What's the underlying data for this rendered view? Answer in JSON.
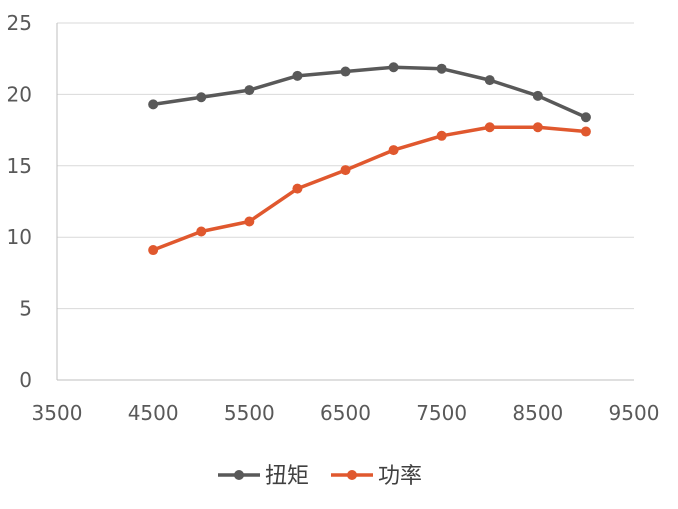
{
  "chart_data": {
    "type": "line",
    "x": [
      4500,
      5000,
      5500,
      6000,
      6500,
      7000,
      7500,
      8000,
      8500,
      9000
    ],
    "series": [
      {
        "name": "扭矩",
        "color": "#595959",
        "values": [
          19.3,
          19.8,
          20.3,
          21.3,
          21.6,
          21.9,
          21.8,
          21.0,
          19.9,
          18.4
        ]
      },
      {
        "name": "功率",
        "color": "#e0582e",
        "values": [
          9.1,
          10.4,
          11.1,
          13.4,
          14.7,
          16.1,
          17.1,
          17.7,
          17.7,
          17.4
        ]
      }
    ],
    "xlim": [
      3500,
      9500
    ],
    "ylim": [
      0,
      25
    ],
    "x_ticks": [
      3500,
      4500,
      5500,
      6500,
      7500,
      8500,
      9500
    ],
    "y_ticks": [
      0,
      5,
      10,
      15,
      20,
      25
    ],
    "grid": "horizontal",
    "legend": "bottom"
  }
}
